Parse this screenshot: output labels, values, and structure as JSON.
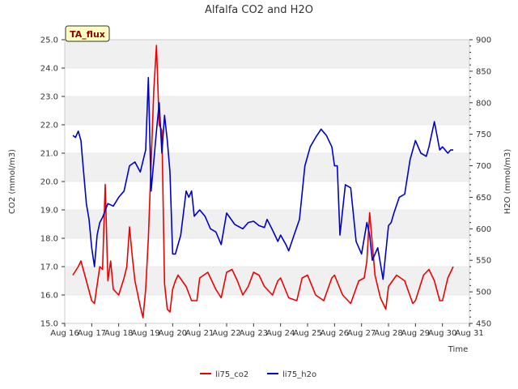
{
  "colors": {
    "co2": "#ee0000",
    "h2o": "#0000cc",
    "band": "#f0f0f0",
    "grid": "#dddddd",
    "badge_fill": "#ffffc0"
  },
  "chart_data": {
    "type": "line",
    "title": "Alfalfa CO2 and H2O",
    "badge": "TA_flux",
    "xlabel": "Time",
    "ylabel_left": "CO2 (mmol/m3)",
    "ylabel_right": "H2O (mmol/m3)",
    "x_ticks": [
      "Aug 16",
      "Aug 17",
      "Aug 18",
      "Aug 19",
      "Aug 20",
      "Aug 21",
      "Aug 22",
      "Aug 23",
      "Aug 24",
      "Aug 25",
      "Aug 26",
      "Aug 27",
      "Aug 28",
      "Aug 29",
      "Aug 30",
      "Aug 31"
    ],
    "xlim": [
      16,
      31
    ],
    "ylim_left": [
      15.0,
      25.0
    ],
    "yticks_left": [
      "15.0",
      "16.0",
      "17.0",
      "18.0",
      "19.0",
      "20.0",
      "21.0",
      "22.0",
      "23.0",
      "24.0",
      "25.0"
    ],
    "ylim_right": [
      450,
      900
    ],
    "yticks_right": [
      "450",
      "500",
      "550",
      "600",
      "650",
      "700",
      "750",
      "800",
      "850",
      "900"
    ],
    "grid": true,
    "legend_position": "bottom-center",
    "series": [
      {
        "name": "li75_co2",
        "axis": "left",
        "x": [
          16.3,
          16.5,
          16.6,
          16.8,
          17.0,
          17.1,
          17.3,
          17.4,
          17.5,
          17.6,
          17.7,
          17.8,
          18.0,
          18.2,
          18.3,
          18.4,
          18.5,
          18.6,
          18.8,
          18.9,
          19.0,
          19.1,
          19.3,
          19.4,
          19.5,
          19.6,
          19.7,
          19.8,
          19.9,
          20.0,
          20.1,
          20.2,
          20.5,
          20.7,
          20.9,
          21.0,
          21.3,
          21.6,
          21.8,
          22.0,
          22.2,
          22.4,
          22.6,
          22.8,
          23.0,
          23.2,
          23.4,
          23.7,
          23.9,
          24.0,
          24.3,
          24.6,
          24.8,
          25.0,
          25.3,
          25.6,
          25.9,
          26.0,
          26.3,
          26.6,
          26.9,
          27.1,
          27.2,
          27.3,
          27.5,
          27.7,
          27.9,
          28.0,
          28.3,
          28.6,
          28.9,
          29.0,
          29.3,
          29.5,
          29.7,
          29.9,
          30.0,
          30.2,
          30.4
        ],
        "values": [
          16.7,
          17.0,
          17.2,
          16.5,
          15.8,
          15.7,
          17.0,
          16.9,
          19.9,
          16.5,
          17.2,
          16.2,
          16.0,
          16.6,
          17.0,
          18.4,
          17.4,
          16.5,
          15.6,
          15.2,
          16.2,
          18.0,
          23.2,
          24.8,
          22.0,
          21.8,
          16.4,
          15.5,
          15.4,
          16.2,
          16.5,
          16.7,
          16.3,
          15.8,
          15.8,
          16.6,
          16.8,
          16.2,
          15.9,
          16.8,
          16.9,
          16.5,
          16.0,
          16.3,
          16.8,
          16.7,
          16.3,
          16.0,
          16.5,
          16.6,
          15.9,
          15.8,
          16.6,
          16.7,
          16.0,
          15.8,
          16.6,
          16.7,
          16.0,
          15.7,
          16.5,
          16.6,
          17.2,
          18.9,
          16.7,
          15.9,
          15.5,
          16.3,
          16.7,
          16.5,
          15.7,
          15.8,
          16.7,
          16.9,
          16.5,
          15.8,
          15.8,
          16.6,
          17.0
        ]
      },
      {
        "name": "li75_h2o",
        "axis": "right",
        "x": [
          16.3,
          16.4,
          16.5,
          16.6,
          16.7,
          16.8,
          16.9,
          17.0,
          17.1,
          17.2,
          17.3,
          17.4,
          17.6,
          17.8,
          18.0,
          18.2,
          18.4,
          18.6,
          18.8,
          19.0,
          19.1,
          19.2,
          19.4,
          19.5,
          19.6,
          19.7,
          19.8,
          19.9,
          20.0,
          20.1,
          20.3,
          20.5,
          20.6,
          20.7,
          20.8,
          21.0,
          21.2,
          21.4,
          21.6,
          21.8,
          22.0,
          22.3,
          22.6,
          22.8,
          23.0,
          23.2,
          23.4,
          23.5,
          23.7,
          23.9,
          24.0,
          24.2,
          24.3,
          24.5,
          24.7,
          24.9,
          25.1,
          25.3,
          25.5,
          25.7,
          25.9,
          26.0,
          26.1,
          26.2,
          26.4,
          26.6,
          26.8,
          27.0,
          27.2,
          27.3,
          27.4,
          27.5,
          27.6,
          27.8,
          28.0,
          28.1,
          28.2,
          28.4,
          28.6,
          28.8,
          29.0,
          29.2,
          29.4,
          29.5,
          29.7,
          29.9,
          30.0,
          30.2,
          30.3,
          30.4
        ],
        "values": [
          748,
          745,
          755,
          740,
          690,
          640,
          615,
          570,
          540,
          590,
          610,
          618,
          640,
          636,
          650,
          660,
          700,
          706,
          690,
          725,
          840,
          660,
          755,
          800,
          720,
          780,
          740,
          690,
          560,
          560,
          590,
          660,
          650,
          660,
          620,
          630,
          620,
          600,
          595,
          575,
          625,
          607,
          600,
          610,
          612,
          605,
          602,
          615,
          598,
          580,
          590,
          575,
          565,
          590,
          615,
          700,
          730,
          745,
          758,
          748,
          730,
          700,
          700,
          590,
          670,
          665,
          580,
          560,
          610,
          590,
          550,
          560,
          570,
          520,
          605,
          610,
          625,
          650,
          655,
          710,
          740,
          720,
          715,
          730,
          770,
          725,
          730,
          720,
          725,
          725
        ]
      }
    ]
  }
}
